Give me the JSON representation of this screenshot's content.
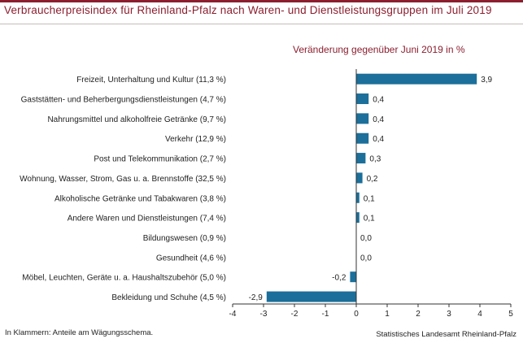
{
  "header": {
    "title": "Verbraucherpreisindex für Rheinland-Pfalz nach Waren- und Dienstleistungsgruppen im Juli 2019",
    "subtitle": "Veränderung gegenüber Juni 2019 in %"
  },
  "footer": {
    "note": "In Klammern: Anteile am Wägungsschema.",
    "source": "Statistisches Landesamt Rheinland-Pfalz"
  },
  "colors": {
    "bar": "#1b6f9a",
    "accent": "#8b1f2f",
    "axis": "#333333",
    "text": "#222222"
  },
  "chart_data": {
    "type": "bar",
    "orientation": "horizontal",
    "title": "Verbraucherpreisindex für Rheinland-Pfalz nach Waren- und Dienstleistungsgruppen im Juli 2019",
    "subtitle": "Veränderung gegenüber Juni 2019 in %",
    "categories": [
      "Freizeit, Unterhaltung und Kultur (11,3 %)",
      "Gaststätten- und Beherbergungsdienstleistungen (4,7 %)",
      "Nahrungsmittel und alkoholfreie Getränke (9,7 %)",
      "Verkehr (12,9 %)",
      "Post und Telekommunikation (2,7 %)",
      "Wohnung, Wasser, Strom, Gas u. a. Brennstoffe (32,5 %)",
      "Alkoholische Getränke und Tabakwaren (3,8 %)",
      "Andere Waren und Dienstleistungen (7,4 %)",
      "Bildungswesen (0,9 %)",
      "Gesundheit (4,6 %)",
      "Möbel, Leuchten, Geräte u. a. Haushaltszubehör (5,0 %)",
      "Bekleidung und Schuhe (4,5 %)"
    ],
    "values": [
      3.9,
      0.4,
      0.4,
      0.4,
      0.3,
      0.2,
      0.1,
      0.1,
      0.0,
      0.0,
      -0.2,
      -2.9
    ],
    "value_labels": [
      "3,9",
      "0,4",
      "0,4",
      "0,4",
      "0,3",
      "0,2",
      "0,1",
      "0,1",
      "0,0",
      "0,0",
      "-0,2",
      "-2,9"
    ],
    "xlim": [
      -4,
      5
    ],
    "xticks": [
      -4,
      -3,
      -2,
      -1,
      0,
      1,
      2,
      3,
      4,
      5
    ],
    "xtick_labels": [
      "-4",
      "-3",
      "-2",
      "-1",
      "0",
      "1",
      "2",
      "3",
      "4",
      "5"
    ],
    "grid": false,
    "legend": "none"
  }
}
